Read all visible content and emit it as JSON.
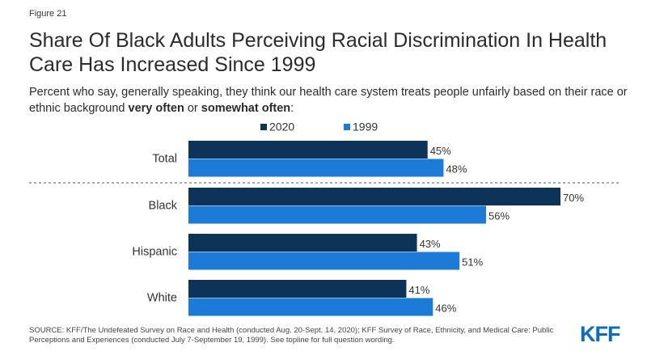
{
  "figure_label": "Figure 21",
  "title": "Share Of Black Adults Perceiving Racial Discrimination In Health Care Has Increased Since 1999",
  "subtitle": {
    "prefix": "Percent who say, generally speaking, they think our health care system treats people unfairly based on their race or ethnic background ",
    "bold1": "very often",
    "middle": " or ",
    "bold2": "somewhat often",
    "suffix": ":"
  },
  "source": "SOURCE: KFF/The Undefeated Survey on Race and Health (conducted Aug. 20-Sept. 14, 2020); KFF Survey of Race, Ethnicity, and Medical Care: Public Perceptions and Experiences (conducted July 7-September 19, 1999). See topline for full question wording.",
  "logo": {
    "text": "KFF",
    "color": "#0a6ebd"
  },
  "colors": {
    "series_2020": "#0d3359",
    "series_1999": "#1b7bd6",
    "divider": "#555555"
  },
  "chart_data": {
    "type": "bar",
    "orientation": "horizontal",
    "categories": [
      "Total",
      "Black",
      "Hispanic",
      "White"
    ],
    "series": [
      {
        "name": "2020",
        "values": [
          45,
          70,
          43,
          41
        ],
        "labels": [
          "45%",
          "70%",
          "43%",
          "41%"
        ]
      },
      {
        "name": "1999",
        "values": [
          48,
          56,
          51,
          46
        ],
        "labels": [
          "48%",
          "56%",
          "51%",
          "46%"
        ]
      }
    ],
    "xlim": [
      0,
      70
    ],
    "grid": false,
    "legend_position": "top",
    "divider_after_category": "Total"
  }
}
